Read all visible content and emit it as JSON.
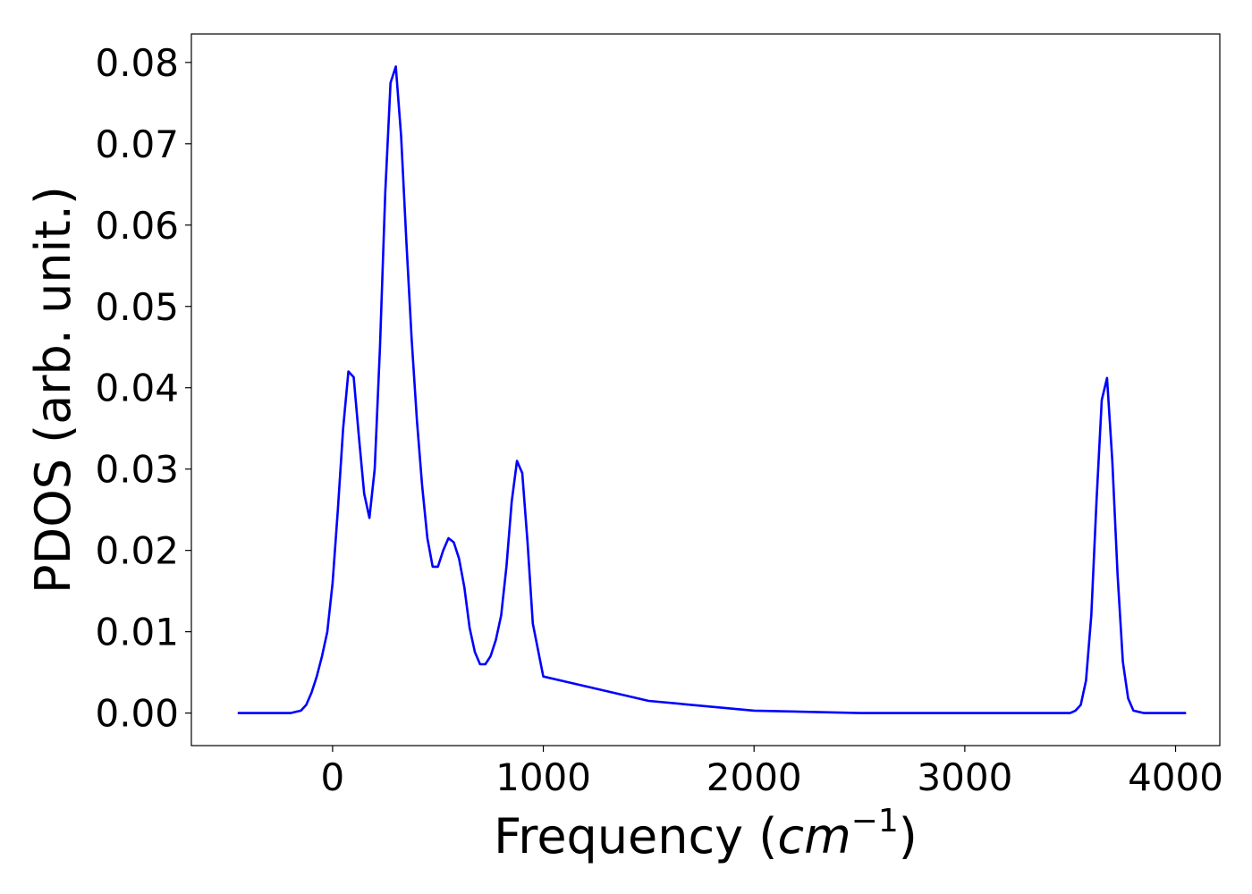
{
  "chart_data": {
    "type": "line",
    "xlabel": {
      "prefix": "Frequency (",
      "math": "cm",
      "superscript": "−1",
      "suffix": ")"
    },
    "ylabel": "PDOS (arb. unit.)",
    "xlim": [
      -670,
      4210
    ],
    "ylim": [
      -0.004,
      0.0835
    ],
    "xticks": [
      0,
      1000,
      2000,
      3000,
      4000
    ],
    "xtick_labels": [
      "0",
      "1000",
      "2000",
      "3000",
      "4000"
    ],
    "yticks": [
      0.0,
      0.01,
      0.02,
      0.03,
      0.04,
      0.05,
      0.06,
      0.07,
      0.08
    ],
    "ytick_labels": [
      "0.00",
      "0.01",
      "0.02",
      "0.03",
      "0.04",
      "0.05",
      "0.06",
      "0.07",
      "0.08"
    ],
    "grid": false,
    "legend": "none",
    "series": [
      {
        "color": "#0000ff",
        "x": [
          -450,
          -200,
          -150,
          -125,
          -100,
          -75,
          -50,
          -25,
          0,
          25,
          50,
          75,
          100,
          125,
          150,
          175,
          200,
          225,
          250,
          275,
          300,
          325,
          350,
          375,
          400,
          425,
          450,
          475,
          500,
          525,
          550,
          575,
          600,
          625,
          650,
          675,
          700,
          725,
          750,
          775,
          800,
          825,
          850,
          875,
          900,
          925,
          950,
          1000,
          1500,
          2000,
          2500,
          3000,
          3450,
          3500,
          3525,
          3550,
          3575,
          3600,
          3625,
          3650,
          3675,
          3700,
          3725,
          3750,
          3775,
          3800,
          3850,
          4050
        ],
        "y": [
          0.0,
          0.0,
          0.0003,
          0.001,
          0.0025,
          0.0045,
          0.007,
          0.01,
          0.016,
          0.025,
          0.035,
          0.042,
          0.0413,
          0.034,
          0.027,
          0.024,
          0.03,
          0.045,
          0.064,
          0.0775,
          0.0795,
          0.071,
          0.058,
          0.046,
          0.036,
          0.028,
          0.0215,
          0.018,
          0.018,
          0.02,
          0.0215,
          0.021,
          0.019,
          0.0155,
          0.0105,
          0.0075,
          0.006,
          0.006,
          0.007,
          0.009,
          0.012,
          0.018,
          0.026,
          0.031,
          0.0295,
          0.021,
          0.011,
          0.0045,
          0.0015,
          0.0003,
          0.0,
          0.0,
          0.0,
          0.0,
          0.0003,
          0.001,
          0.004,
          0.012,
          0.026,
          0.0385,
          0.0412,
          0.031,
          0.017,
          0.0063,
          0.0018,
          0.0003,
          0.0,
          0.0
        ]
      }
    ]
  }
}
